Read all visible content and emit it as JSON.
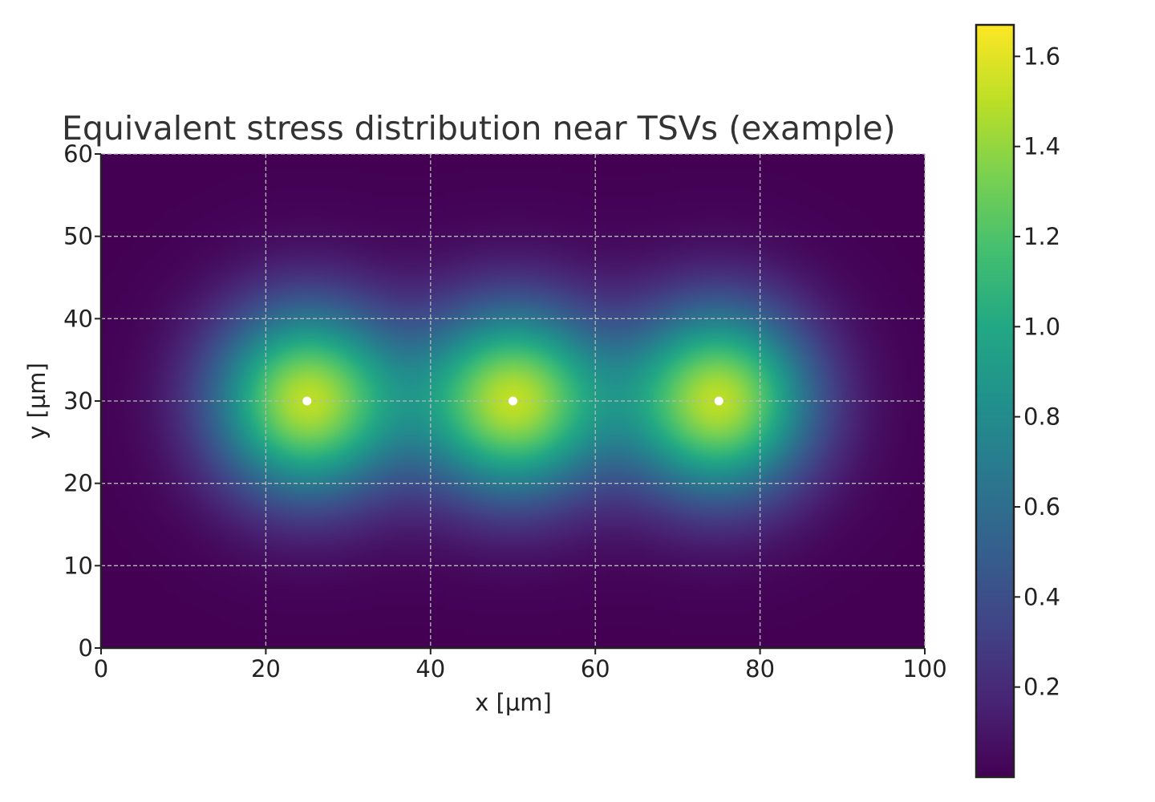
{
  "chart_data": {
    "type": "heatmap",
    "title": "Equivalent stress distribution near TSVs (example)",
    "xlabel": "x [µm]",
    "ylabel": "y [µm]",
    "xlim": [
      0,
      100
    ],
    "ylim": [
      0,
      60
    ],
    "x_ticks": [
      "0",
      "20",
      "40",
      "60",
      "80",
      "100"
    ],
    "y_ticks": [
      "0",
      "10",
      "20",
      "30",
      "40",
      "50",
      "60"
    ],
    "grid": true,
    "colormap": "viridis",
    "colorbar": {
      "range": [
        0.0,
        1.67
      ],
      "ticks": [
        "0.2",
        "0.4",
        "0.6",
        "0.8",
        "1.0",
        "1.2",
        "1.4",
        "1.6"
      ]
    },
    "tsv_centers": [
      {
        "x": 25,
        "y": 30
      },
      {
        "x": 50,
        "y": 30
      },
      {
        "x": 75,
        "y": 30
      }
    ],
    "tsv_marker_color": "#ffffff",
    "peak_value": 1.67
  }
}
